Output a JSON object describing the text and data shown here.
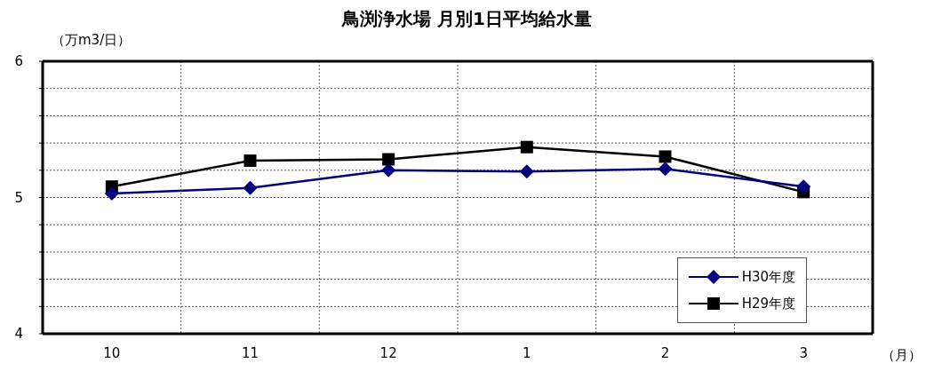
{
  "chart_data": {
    "type": "line",
    "title": "鳥渕浄水場 月別1日平均給水量",
    "ylabel": "（万m3/日）",
    "xlabel": "（月）",
    "categories": [
      "10",
      "11",
      "12",
      "1",
      "2",
      "3"
    ],
    "series": [
      {
        "name": "H30年度",
        "color": "#000080",
        "marker": "diamond",
        "values": [
          5.03,
          5.07,
          5.2,
          5.19,
          5.21,
          5.08
        ]
      },
      {
        "name": "H29年度",
        "color": "#000000",
        "marker": "square",
        "values": [
          5.08,
          5.27,
          5.28,
          5.37,
          5.3,
          5.04
        ]
      }
    ],
    "ylim": [
      4,
      6
    ],
    "yticks": [
      4,
      {
        "value": 4.2,
        "label": null
      },
      {
        "value": 4.4,
        "label": null
      },
      {
        "value": 4.6,
        "label": null
      },
      {
        "value": 4.8,
        "label": null
      },
      5,
      {
        "value": 5.2,
        "label": null
      },
      {
        "value": 5.4,
        "label": null
      },
      {
        "value": 5.6,
        "label": null
      },
      {
        "value": 5.8,
        "label": null
      },
      6
    ],
    "grid": true,
    "legend": "bottom right",
    "line_style": "solid"
  }
}
